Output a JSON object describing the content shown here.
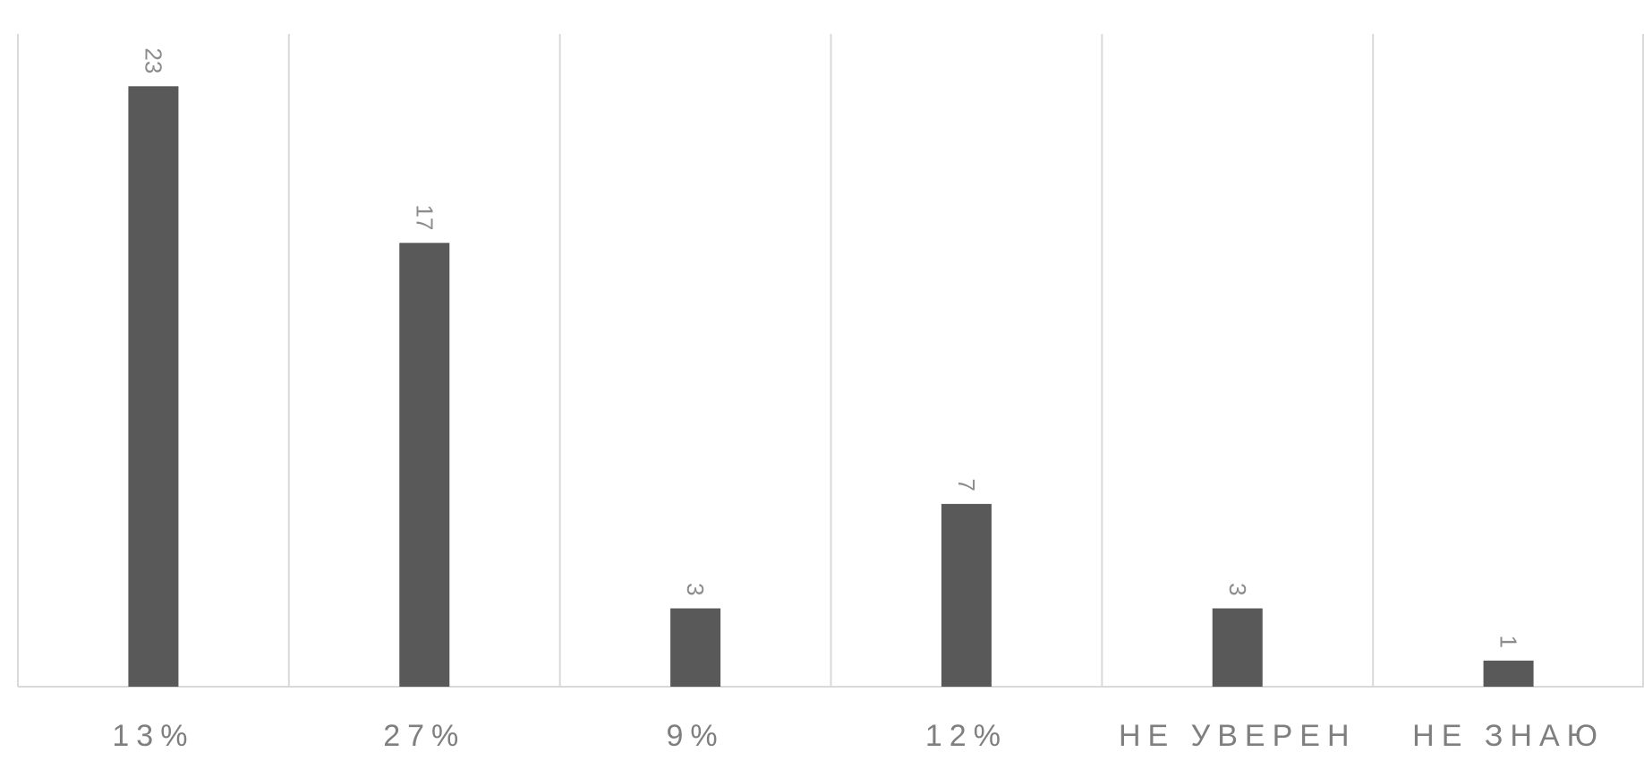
{
  "chart_data": {
    "type": "bar",
    "categories": [
      "13%",
      "27%",
      "9%",
      "12%",
      "НЕ УВЕРЕН",
      "НЕ ЗНАЮ"
    ],
    "values": [
      23,
      17,
      3,
      7,
      3,
      1
    ],
    "data_labels": [
      "23",
      "17",
      "3",
      "7",
      "3",
      "1"
    ],
    "ylim": [
      0,
      25
    ],
    "grid": "vertical separators",
    "legend": "none",
    "bar_color": "#595959",
    "grid_color": "#d9d9d9",
    "label_color": "#8c8c8c"
  }
}
